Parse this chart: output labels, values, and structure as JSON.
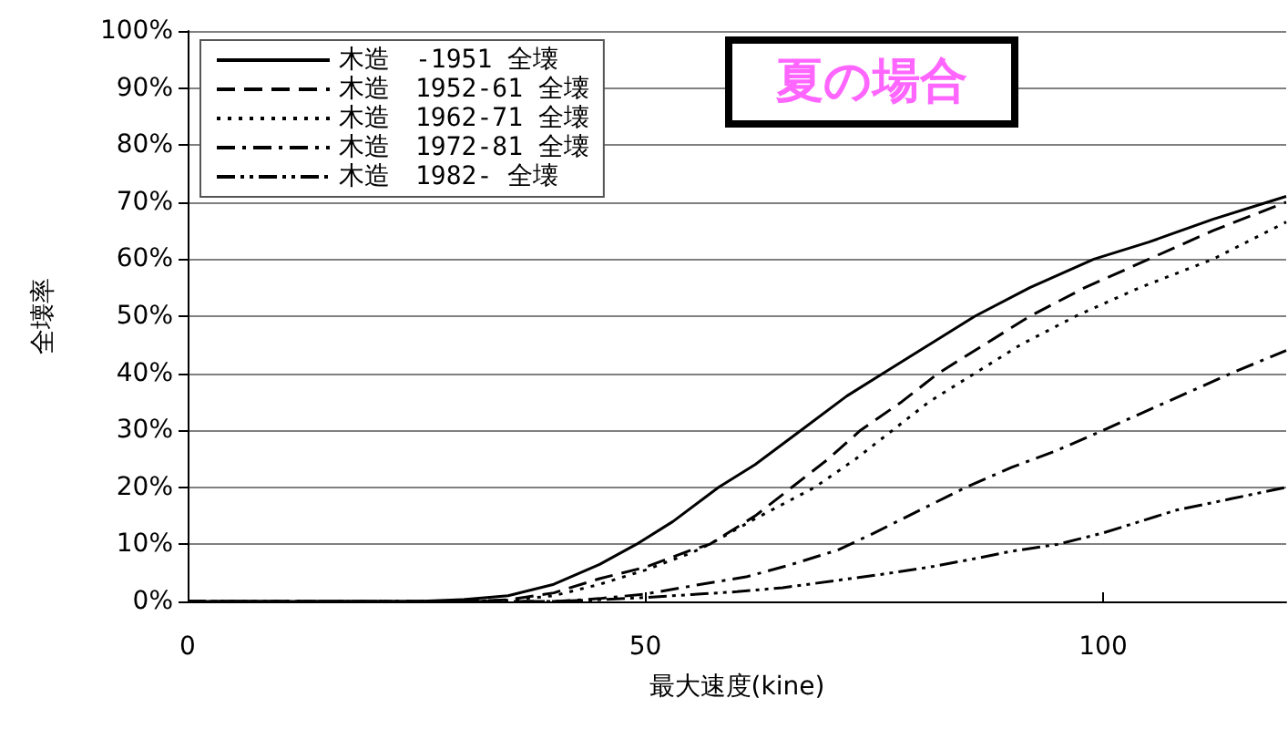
{
  "chart_data": {
    "type": "line",
    "title": "夏の場合",
    "xlabel": "最大速度(kine)",
    "ylabel": "全壊率",
    "xlim": [
      0,
      120
    ],
    "xticks": [
      0,
      50,
      100
    ],
    "ylim": [
      0,
      100
    ],
    "yticks": [
      {
        "value": 0,
        "label": "0%"
      },
      {
        "value": 10,
        "label": "10%"
      },
      {
        "value": 20,
        "label": "20%"
      },
      {
        "value": 30,
        "label": "30%"
      },
      {
        "value": 40,
        "label": "40%"
      },
      {
        "value": 50,
        "label": "50%"
      },
      {
        "value": 60,
        "label": "60%"
      },
      {
        "value": 70,
        "label": "70%"
      },
      {
        "value": 80,
        "label": "80%"
      },
      {
        "value": 90,
        "label": "90%"
      },
      {
        "value": 100,
        "label": "100%"
      }
    ],
    "grid": "y",
    "legend": "top left",
    "marker": "none",
    "series": [
      {
        "name": "木造　-1951 全壊",
        "color": "#000000",
        "line_style": "solid",
        "x": [
          0,
          25,
          30,
          35,
          40,
          45,
          49,
          53,
          58,
          62,
          67,
          72,
          76,
          81,
          86,
          92,
          99,
          105,
          112,
          118,
          120
        ],
        "values": [
          0,
          0,
          0.3,
          1,
          3,
          6.5,
          10,
          14,
          20,
          24,
          30,
          36,
          40,
          45,
          50,
          55,
          60,
          63,
          67,
          70,
          71
        ]
      },
      {
        "name": "木造　1952-61 全壊",
        "color": "#000000",
        "line_style": "dashed",
        "x": [
          0,
          30,
          35,
          40,
          45,
          50,
          55,
          57,
          62,
          66,
          70,
          73.5,
          78,
          82,
          87,
          92,
          98,
          105,
          112,
          120
        ],
        "values": [
          0,
          0,
          0.3,
          1.5,
          4,
          6,
          9,
          10,
          15,
          20,
          25,
          30,
          35,
          40,
          45,
          50,
          55,
          60,
          65,
          70
        ]
      },
      {
        "name": "木造　1962-71 全壊",
        "color": "#000000",
        "line_style": "dotted",
        "x": [
          0,
          30,
          35,
          40,
          45,
          50,
          55,
          57,
          62,
          68.5,
          73,
          77,
          81,
          86,
          91,
          97,
          104,
          112,
          120
        ],
        "values": [
          0,
          0,
          0.2,
          1,
          3,
          5.5,
          8.5,
          10,
          14.5,
          20,
          25,
          30,
          35,
          40,
          45,
          50,
          55,
          60,
          66.5
        ]
      },
      {
        "name": "木造　1972-81 全壊",
        "color": "#000000",
        "line_style": "dashdot",
        "x": [
          0,
          40,
          45,
          50,
          55,
          61,
          66,
          71,
          75,
          80,
          85,
          90,
          95,
          100,
          107,
          114,
          120
        ],
        "values": [
          0,
          0,
          0.5,
          1.3,
          2.7,
          4.3,
          6.5,
          9,
          12,
          16,
          20,
          23.5,
          26.5,
          30,
          35,
          40,
          44
        ]
      },
      {
        "name": "木造　1982- 全壊",
        "color": "#000000",
        "line_style": "dashdotdot",
        "x": [
          0,
          40,
          45,
          50,
          55,
          60,
          65,
          71,
          76,
          81,
          86,
          90,
          95,
          100,
          104,
          108,
          114,
          120
        ],
        "values": [
          0,
          0,
          0.3,
          0.7,
          1.2,
          1.7,
          2.4,
          3.7,
          4.8,
          6,
          7.5,
          8.8,
          10,
          12,
          14,
          16,
          18,
          20
        ]
      }
    ]
  }
}
